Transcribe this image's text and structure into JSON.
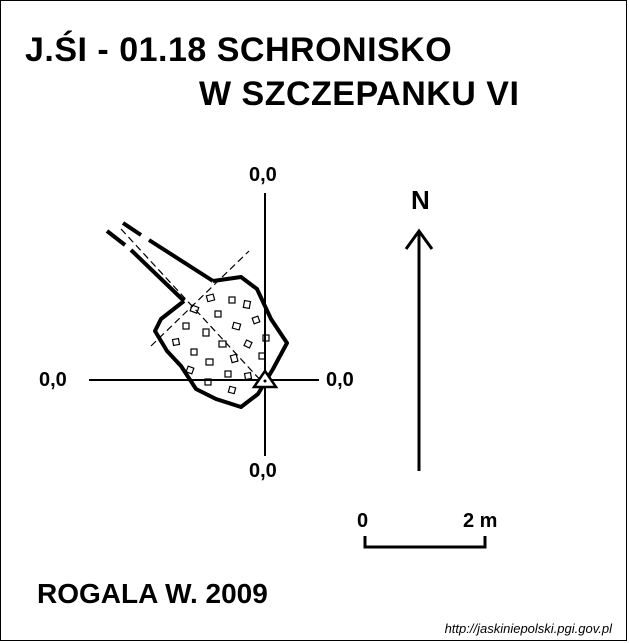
{
  "title": {
    "line1": "J.ŚI - 01.18 SCHRONISKO",
    "line2": "W SZCZEPANKU VI"
  },
  "coordinates": {
    "top": "0,0",
    "left": "0,0",
    "right": "0,0",
    "bottom": "0,0"
  },
  "north_arrow": {
    "label": "N"
  },
  "scale_bar": {
    "start_label": "0",
    "end_label": "2 m"
  },
  "author": "ROGALA W. 2009",
  "source": "http://jaskiniepolski.pgi.gov.pl"
}
